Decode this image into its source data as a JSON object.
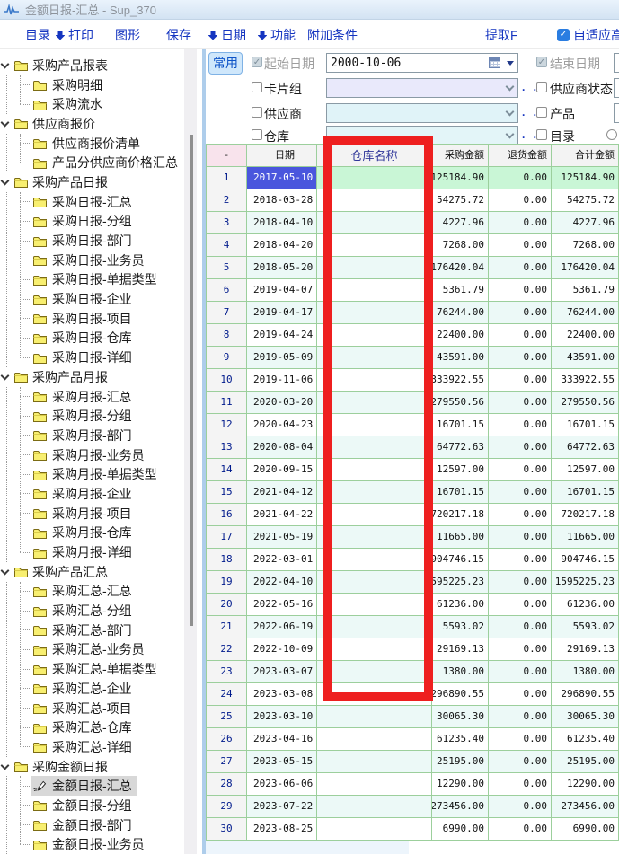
{
  "window": {
    "title": "金额日报-汇总 - Sup_370"
  },
  "menu": {
    "items": [
      {
        "label": "目录",
        "arrow": false
      },
      {
        "label": "打印",
        "arrow": true
      },
      {
        "label": "图形",
        "arrow": false
      },
      {
        "label": "保存",
        "arrow": false
      },
      {
        "label": "日期",
        "arrow": true
      },
      {
        "label": "功能",
        "arrow": true
      },
      {
        "label": "附加条件",
        "arrow": false
      },
      {
        "label": "提取F",
        "arrow": false
      },
      {
        "label": "自适应高",
        "checkbox": true,
        "checked": true
      }
    ]
  },
  "filters": {
    "common_button": "常用",
    "dots": ". .",
    "left": [
      {
        "label": "起始日期",
        "checked": true,
        "disabled": true,
        "control": "date",
        "value": "2000-10-06"
      },
      {
        "label": "卡片组",
        "checked": false,
        "control": "dropdown",
        "value": "",
        "tint": "#e9e9fb"
      },
      {
        "label": "供应商",
        "checked": false,
        "control": "dropdown",
        "value": "",
        "tint": "#e0f3f8"
      },
      {
        "label": "仓库",
        "checked": false,
        "control": "dropdown",
        "value": "",
        "tint": "#e3f5f8"
      }
    ],
    "right": [
      {
        "label": "结束日期",
        "checked": true,
        "disabled": true,
        "sliver": true
      },
      {
        "label": "供应商状态",
        "checked": false,
        "sliver": true
      },
      {
        "label": "产品",
        "checked": false,
        "sliver": true
      },
      {
        "label": "目录",
        "checked": false,
        "sliver": false,
        "extra_circle": true
      }
    ]
  },
  "sidebar": {
    "selected_item": "金额日报-汇总",
    "groups": [
      {
        "label": "采购产品报表",
        "items": [
          "采购明细",
          "采购流水"
        ]
      },
      {
        "label": "供应商报价",
        "items": [
          "供应商报价清单",
          "产品分供应商价格汇总"
        ]
      },
      {
        "label": "采购产品日报",
        "items": [
          "采购日报-汇总",
          "采购日报-分组",
          "采购日报-部门",
          "采购日报-业务员",
          "采购日报-单据类型",
          "采购日报-企业",
          "采购日报-项目",
          "采购日报-仓库",
          "采购日报-详细"
        ]
      },
      {
        "label": "采购产品月报",
        "items": [
          "采购月报-汇总",
          "采购月报-分组",
          "采购月报-部门",
          "采购月报-业务员",
          "采购月报-单据类型",
          "采购月报-企业",
          "采购月报-项目",
          "采购月报-仓库",
          "采购月报-详细"
        ]
      },
      {
        "label": "采购产品汇总",
        "items": [
          "采购汇总-汇总",
          "采购汇总-分组",
          "采购汇总-部门",
          "采购汇总-业务员",
          "采购汇总-单据类型",
          "采购汇总-企业",
          "采购汇总-项目",
          "采购汇总-仓库",
          "采购汇总-详细"
        ]
      },
      {
        "label": "采购金额日报",
        "items": [
          "金额日报-汇总",
          "金额日报-分组",
          "金额日报-部门",
          "金额日报-业务员"
        ]
      }
    ]
  },
  "table": {
    "columns": [
      "-",
      "日期",
      "仓库名称",
      "采购金额",
      "退货金额",
      "合计金额"
    ],
    "selected_row": 1,
    "rows": [
      [
        "1",
        "2017-05-10",
        "",
        "125184.90",
        "0.00",
        "125184.90"
      ],
      [
        "2",
        "2018-03-28",
        "",
        "54275.72",
        "0.00",
        "54275.72"
      ],
      [
        "3",
        "2018-04-10",
        "",
        "4227.96",
        "0.00",
        "4227.96"
      ],
      [
        "4",
        "2018-04-20",
        "",
        "7268.00",
        "0.00",
        "7268.00"
      ],
      [
        "5",
        "2018-05-20",
        "",
        "176420.04",
        "0.00",
        "176420.04"
      ],
      [
        "6",
        "2019-04-07",
        "",
        "5361.79",
        "0.00",
        "5361.79"
      ],
      [
        "7",
        "2019-04-17",
        "",
        "76244.00",
        "0.00",
        "76244.00"
      ],
      [
        "8",
        "2019-04-24",
        "",
        "22400.00",
        "0.00",
        "22400.00"
      ],
      [
        "9",
        "2019-05-09",
        "",
        "43591.00",
        "0.00",
        "43591.00"
      ],
      [
        "10",
        "2019-11-06",
        "",
        "333922.55",
        "0.00",
        "333922.55"
      ],
      [
        "11",
        "2020-03-20",
        "",
        "279550.56",
        "0.00",
        "279550.56"
      ],
      [
        "12",
        "2020-04-23",
        "",
        "16701.15",
        "0.00",
        "16701.15"
      ],
      [
        "13",
        "2020-08-04",
        "",
        "64772.63",
        "0.00",
        "64772.63"
      ],
      [
        "14",
        "2020-09-15",
        "",
        "12597.00",
        "0.00",
        "12597.00"
      ],
      [
        "15",
        "2021-04-12",
        "",
        "16701.15",
        "0.00",
        "16701.15"
      ],
      [
        "16",
        "2021-04-22",
        "",
        "720217.18",
        "0.00",
        "720217.18"
      ],
      [
        "17",
        "2021-05-19",
        "",
        "11665.00",
        "0.00",
        "11665.00"
      ],
      [
        "18",
        "2022-03-01",
        "",
        "904746.15",
        "0.00",
        "904746.15"
      ],
      [
        "19",
        "2022-04-10",
        "",
        "1595225.23",
        "0.00",
        "1595225.23"
      ],
      [
        "20",
        "2022-05-16",
        "",
        "61236.00",
        "0.00",
        "61236.00"
      ],
      [
        "21",
        "2022-06-19",
        "",
        "5593.02",
        "0.00",
        "5593.02"
      ],
      [
        "22",
        "2022-10-09",
        "",
        "29169.13",
        "0.00",
        "29169.13"
      ],
      [
        "23",
        "2023-03-07",
        "",
        "1380.00",
        "0.00",
        "1380.00"
      ],
      [
        "24",
        "2023-03-08",
        "",
        "296890.55",
        "0.00",
        "296890.55"
      ],
      [
        "25",
        "2023-03-10",
        "",
        "30065.30",
        "0.00",
        "30065.30"
      ],
      [
        "26",
        "2023-04-16",
        "",
        "61235.40",
        "0.00",
        "61235.40"
      ],
      [
        "27",
        "2023-05-15",
        "",
        "25195.00",
        "0.00",
        "25195.00"
      ],
      [
        "28",
        "2023-06-06",
        "",
        "12290.00",
        "0.00",
        "12290.00"
      ],
      [
        "29",
        "2023-07-22",
        "",
        "273456.00",
        "0.00",
        "273456.00"
      ],
      [
        "30",
        "2023-08-25",
        "",
        "6990.00",
        "0.00",
        "6990.00"
      ]
    ]
  },
  "highlight_rectangle": {
    "color": "#ee1f1f",
    "column": "仓库名称"
  },
  "colors": {
    "menu_text": "#1535c0",
    "grid_line": "#9ccf9c",
    "selected_row_bg": "#c9f6d6",
    "selected_date_cell_bg": "#4a56dd",
    "first_header_bg": "#f8e3ec",
    "alt_row_bg": "#ecf9f7",
    "tree_selected_bg": "#d8d8d8",
    "panel_border": "#aecdeb",
    "checkbox_checked_blue": "#2a7de1"
  }
}
